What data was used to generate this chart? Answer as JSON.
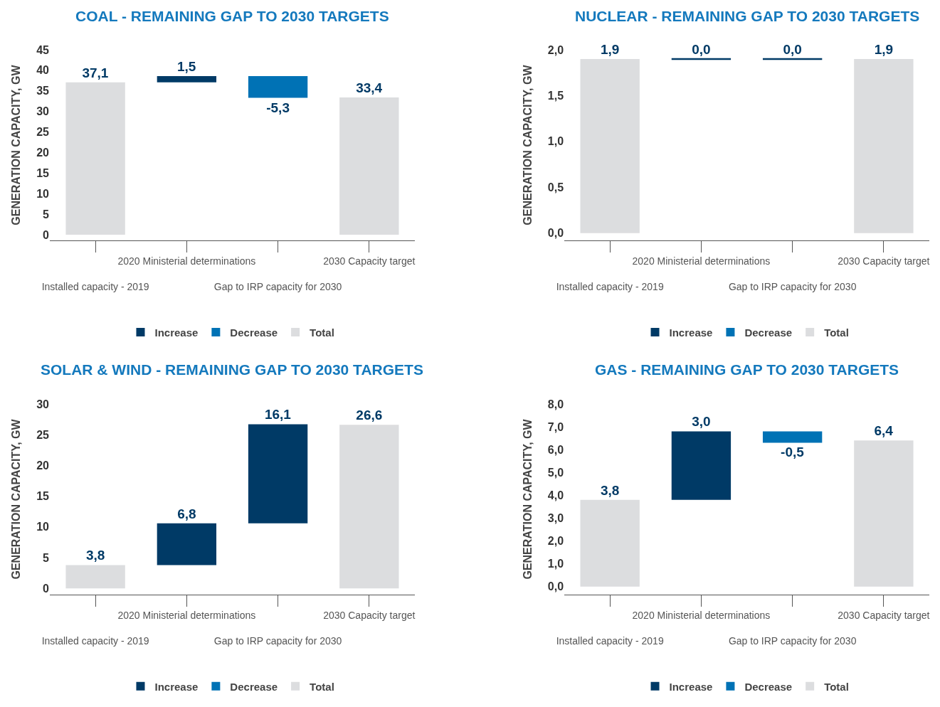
{
  "chart_data": [
    {
      "type": "bar",
      "title": "COAL - REMAINING GAP TO 2030 TARGETS",
      "ylabel": "GENERATION CAPACITY, GW",
      "categories": [
        "Installed capacity - 2019",
        "2020 Ministerial determinations",
        "Gap to IRP capacity for 2030",
        "2030 Capacity target"
      ],
      "series": [
        {
          "name": "Increase",
          "color": "#003a66",
          "values": [
            null,
            1.5,
            null,
            null
          ],
          "base": [
            null,
            37.1,
            null,
            null
          ],
          "value_labels": [
            null,
            "1,5",
            null,
            null
          ]
        },
        {
          "name": "Decrease",
          "color": "#0072b5",
          "values": [
            null,
            null,
            -5.3,
            null
          ],
          "base": [
            null,
            null,
            38.6,
            null
          ],
          "value_labels": [
            null,
            null,
            "-5,3",
            null
          ]
        },
        {
          "name": "Total",
          "color": "#dcdddf",
          "values": [
            37.1,
            null,
            null,
            33.4
          ],
          "value_labels": [
            "37,1",
            null,
            null,
            "33,4"
          ]
        }
      ],
      "ylim": [
        -1.4,
        45
      ],
      "yticks": [
        0,
        5,
        10,
        15,
        20,
        25,
        30,
        35,
        40,
        45
      ],
      "legend": "bottom"
    },
    {
      "type": "bar",
      "title": "NUCLEAR - REMAINING GAP TO 2030 TARGETS",
      "ylabel": "GENERATION CAPACITY, GW",
      "categories": [
        "Installed capacity - 2019",
        "2020 Ministerial determinations",
        "Gap to IRP capacity for 2030",
        "2030 Capacity target"
      ],
      "series": [
        {
          "name": "Increase",
          "color": "#003a66",
          "values": [
            null,
            0.0,
            0.0,
            null
          ],
          "base": [
            null,
            1.9,
            1.9,
            null
          ],
          "value_labels": [
            null,
            "0,0",
            "0,0",
            null
          ]
        },
        {
          "name": "Decrease",
          "color": "#0072b5",
          "values": [
            null,
            null,
            null,
            null
          ],
          "value_labels": [
            null,
            null,
            null,
            null
          ]
        },
        {
          "name": "Total",
          "color": "#dcdddf",
          "values": [
            1.9,
            null,
            null,
            1.9
          ],
          "value_labels": [
            "1,9",
            null,
            null,
            "1,9"
          ]
        }
      ],
      "ylim": [
        -0.08,
        2.0
      ],
      "yticks": [
        {
          "value": 0,
          "label": "0,0"
        },
        {
          "value": 0.5,
          "label": "0,5"
        },
        {
          "value": 1,
          "label": "1,0"
        },
        {
          "value": 1.5,
          "label": "1,5"
        },
        {
          "value": 2,
          "label": "2,0"
        }
      ],
      "legend": "bottom"
    },
    {
      "type": "bar",
      "title": "SOLAR & WIND - REMAINING GAP TO 2030 TARGETS",
      "ylabel": "GENERATION CAPACITY, GW",
      "categories": [
        "Installed capacity - 2019",
        "2020 Ministerial determinations",
        "Gap to IRP capacity for 2030",
        "2030 Capacity target"
      ],
      "series": [
        {
          "name": "Increase",
          "color": "#003a66",
          "values": [
            null,
            6.8,
            16.1,
            null
          ],
          "base": [
            null,
            3.8,
            10.6,
            null
          ],
          "value_labels": [
            null,
            "6,8",
            "16,1",
            null
          ]
        },
        {
          "name": "Decrease",
          "color": "#0072b5",
          "values": [
            null,
            null,
            null,
            null
          ],
          "value_labels": [
            null,
            null,
            null,
            null
          ]
        },
        {
          "name": "Total",
          "color": "#dcdddf",
          "values": [
            3.8,
            null,
            null,
            26.6
          ],
          "value_labels": [
            "3,8",
            null,
            null,
            "26,6"
          ]
        }
      ],
      "ylim": [
        -1.0,
        30
      ],
      "yticks": [
        0,
        5,
        10,
        15,
        20,
        25,
        30
      ],
      "legend": "bottom"
    },
    {
      "type": "bar",
      "title": "GAS - REMAINING GAP TO 2030 TARGETS",
      "ylabel": "GENERATION CAPACITY, GW",
      "categories": [
        "Installed capacity - 2019",
        "2020 Ministerial determinations",
        "Gap to IRP capacity for 2030",
        "2030 Capacity target"
      ],
      "series": [
        {
          "name": "Increase",
          "color": "#003a66",
          "values": [
            null,
            3.0,
            null,
            null
          ],
          "base": [
            null,
            3.8,
            null,
            null
          ],
          "value_labels": [
            null,
            "3,0",
            null,
            null
          ]
        },
        {
          "name": "Decrease",
          "color": "#0072b5",
          "values": [
            null,
            null,
            -0.5,
            null
          ],
          "base": [
            null,
            null,
            6.8,
            null
          ],
          "value_labels": [
            null,
            null,
            "-0,5",
            null
          ]
        },
        {
          "name": "Total",
          "color": "#dcdddf",
          "values": [
            3.8,
            null,
            null,
            6.4
          ],
          "value_labels": [
            "3,8",
            null,
            null,
            "6,4"
          ]
        }
      ],
      "ylim": [
        -0.35,
        8.0
      ],
      "yticks": [
        {
          "value": 0,
          "label": "0,0"
        },
        {
          "value": 1,
          "label": "1,0"
        },
        {
          "value": 2,
          "label": "2,0"
        },
        {
          "value": 3,
          "label": "3,0"
        },
        {
          "value": 4,
          "label": "4,0"
        },
        {
          "value": 5,
          "label": "5,0"
        },
        {
          "value": 6,
          "label": "6,0"
        },
        {
          "value": 7,
          "label": "7,0"
        },
        {
          "value": 8,
          "label": "8,0"
        }
      ],
      "legend": "bottom"
    }
  ]
}
